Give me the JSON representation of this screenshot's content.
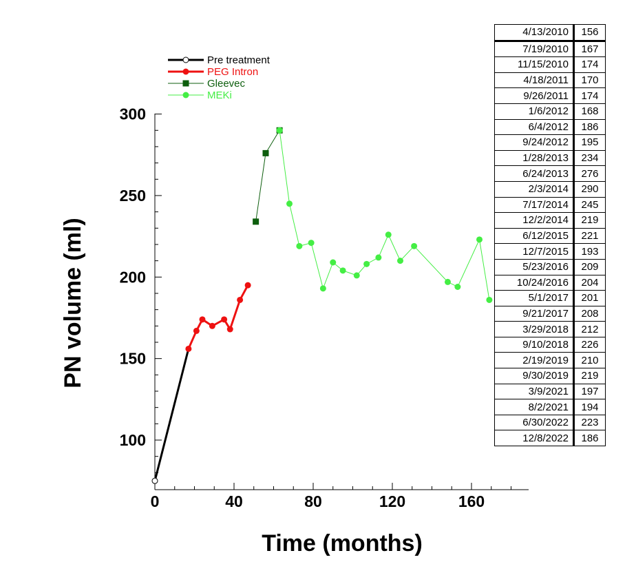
{
  "chart_data": {
    "type": "line",
    "xlabel": "Time (months)",
    "ylabel": "PN volume (ml)",
    "xlim": [
      0,
      190
    ],
    "ylim": [
      75,
      302
    ],
    "xticks": [
      0,
      40,
      80,
      120,
      160
    ],
    "yticks": [
      100,
      150,
      200,
      250,
      300
    ],
    "legend_position": "top-left",
    "series": [
      {
        "name": "Pre treatment",
        "color": "#000000",
        "marker": "open-circle",
        "x": [
          0,
          17
        ],
        "y": [
          75,
          156
        ]
      },
      {
        "name": "PEG Intron",
        "color": "#ee1111",
        "marker": "circle",
        "x": [
          17,
          21,
          24,
          29,
          35,
          38,
          43,
          47
        ],
        "y": [
          156,
          167,
          174,
          170,
          174,
          168,
          186,
          195
        ]
      },
      {
        "name": "Gleevec",
        "color": "#0d5e0d",
        "marker": "square",
        "x": [
          51,
          56,
          63
        ],
        "y": [
          234,
          276,
          290
        ]
      },
      {
        "name": "MEKi",
        "color": "#44ee44",
        "marker": "circle",
        "x": [
          63,
          68,
          73,
          79,
          85,
          90,
          95,
          102,
          107,
          113,
          118,
          124,
          131,
          148,
          153,
          164,
          169
        ],
        "y": [
          290,
          245,
          219,
          221,
          193,
          209,
          204,
          201,
          208,
          212,
          226,
          210,
          219,
          197,
          194,
          223,
          186
        ]
      }
    ]
  },
  "table": {
    "rows": [
      {
        "date": "4/13/2010",
        "volume": "156"
      },
      {
        "date": "7/19/2010",
        "volume": "167"
      },
      {
        "date": "11/15/2010",
        "volume": "174"
      },
      {
        "date": "4/18/2011",
        "volume": "170"
      },
      {
        "date": "9/26/2011",
        "volume": "174"
      },
      {
        "date": "1/6/2012",
        "volume": "168"
      },
      {
        "date": "6/4/2012",
        "volume": "186"
      },
      {
        "date": "9/24/2012",
        "volume": "195"
      },
      {
        "date": "1/28/2013",
        "volume": "234"
      },
      {
        "date": "6/24/2013",
        "volume": "276"
      },
      {
        "date": "2/3/2014",
        "volume": "290"
      },
      {
        "date": "7/17/2014",
        "volume": "245"
      },
      {
        "date": "12/2/2014",
        "volume": "219"
      },
      {
        "date": "6/12/2015",
        "volume": "221"
      },
      {
        "date": "12/7/2015",
        "volume": "193"
      },
      {
        "date": "5/23/2016",
        "volume": "209"
      },
      {
        "date": "10/24/2016",
        "volume": "204"
      },
      {
        "date": "5/1/2017",
        "volume": "201"
      },
      {
        "date": "9/21/2017",
        "volume": "208"
      },
      {
        "date": "3/29/2018",
        "volume": "212"
      },
      {
        "date": "9/10/2018",
        "volume": "226"
      },
      {
        "date": "2/19/2019",
        "volume": "210"
      },
      {
        "date": "9/30/2019",
        "volume": "219"
      },
      {
        "date": "3/9/2021",
        "volume": "197"
      },
      {
        "date": "8/2/2021",
        "volume": "194"
      },
      {
        "date": "6/30/2022",
        "volume": "223"
      },
      {
        "date": "12/8/2022",
        "volume": "186"
      }
    ]
  }
}
